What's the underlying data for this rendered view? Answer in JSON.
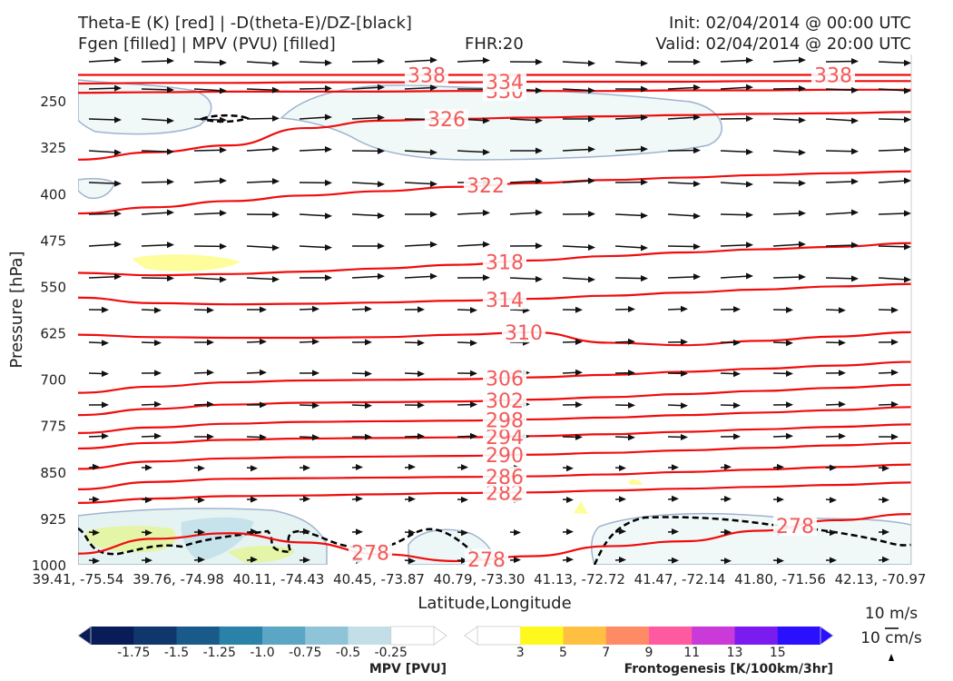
{
  "header": {
    "title_line1": "Theta-E (K) [red] | -D(theta-E)/DZ-[black]",
    "title_line2": "Fgen [filled] | MPV (PVU) [filled]",
    "fhr": "FHR:20",
    "init": "Init: 02/04/2014 @ 00:00 UTC",
    "valid": "Valid: 02/04/2014 @ 20:00 UTC"
  },
  "chart_data": {
    "type": "cross-section",
    "xlabel": "Latitude,Longitude",
    "ylabel": "Pressure [hPa]",
    "ylim": [
      1000,
      175
    ],
    "y_scale": "linear",
    "y_ticks": [
      250,
      325,
      400,
      475,
      550,
      625,
      700,
      775,
      850,
      925,
      1000
    ],
    "x_ticks": [
      "39.41, -75.54",
      "39.76, -74.98",
      "40.11, -74.43",
      "40.45, -73.87",
      "40.79, -73.30",
      "41.13, -72.72",
      "41.47, -72.14",
      "41.80, -71.56",
      "42.13, -70.97"
    ],
    "thetae_contours": [
      {
        "label": "278",
        "p": [
          982,
          958,
          949,
          964,
          983,
          994,
          986,
          970,
          962,
          945,
          928,
          918
        ]
      },
      {
        "label": "282",
        "p": [
          900,
          893,
          889,
          888,
          886,
          884,
          883,
          880,
          877,
          874,
          871,
          867
        ]
      },
      {
        "label": "286",
        "p": [
          878,
          866,
          861,
          860,
          859,
          858,
          857,
          854,
          850,
          846,
          842,
          838
        ]
      },
      {
        "label": "290",
        "p": [
          845,
          833,
          828,
          826,
          825,
          824,
          822,
          819,
          815,
          811,
          807,
          803
        ]
      },
      {
        "label": "294",
        "p": [
          812,
          803,
          798,
          796,
          795,
          794,
          792,
          789,
          785,
          781,
          777,
          773
        ]
      },
      {
        "label": "298",
        "p": [
          787,
          778,
          772,
          769,
          768,
          767,
          765,
          762,
          758,
          754,
          750,
          745
        ]
      },
      {
        "label": "302",
        "p": [
          758,
          748,
          741,
          738,
          737,
          736,
          733,
          729,
          724,
          719,
          714,
          709
        ]
      },
      {
        "label": "306",
        "p": [
          722,
          712,
          705,
          702,
          701,
          700,
          697,
          693,
          688,
          683,
          678,
          672
        ]
      },
      {
        "label": "310",
        "p": [
          628,
          632,
          633,
          633,
          632,
          628,
          624,
          641,
          645,
          638,
          631,
          624
        ]
      },
      {
        "label": "314",
        "p": [
          568,
          577,
          579,
          578,
          576,
          573,
          570,
          565,
          560,
          555,
          550,
          546
        ]
      },
      {
        "label": "318",
        "p": [
          528,
          532,
          530,
          526,
          521,
          515,
          508,
          501,
          495,
          490,
          486,
          480
        ]
      },
      {
        "label": "322",
        "p": [
          432,
          422,
          412,
          403,
          396,
          389,
          383,
          378,
          374,
          370,
          367,
          364
        ]
      },
      {
        "label": "326",
        "p": [
          345,
          333,
          322,
          294,
          282,
          279,
          277,
          275,
          273,
          271,
          270,
          268
        ]
      },
      {
        "label": "330",
        "p": [
          237,
          236,
          235,
          235,
          235,
          234,
          234,
          234,
          233,
          233,
          232,
          232
        ]
      },
      {
        "label": "334",
        "p": [
          222,
          221,
          221,
          220,
          220,
          220,
          219,
          219,
          219,
          218,
          218,
          218
        ]
      },
      {
        "label": "338",
        "p": [
          208,
          208,
          208,
          208,
          208,
          208,
          208,
          208,
          208,
          208,
          208,
          208
        ]
      }
    ],
    "mpv_colorbar": {
      "label": "MPV [PVU]",
      "ticks": [
        "-1.75",
        "-1.5",
        "-1.25",
        "-1.0",
        "-0.75",
        "-0.5",
        "-0.25"
      ],
      "colors": [
        "#081d58",
        "#10376c",
        "#1a5a8a",
        "#2a82a8",
        "#5aa6c4",
        "#8fc4d8",
        "#c2dfe8",
        "#ffffff"
      ]
    },
    "fgen_colorbar": {
      "label": "Frontogenesis [K/100km/3hr]",
      "ticks": [
        "3",
        "5",
        "7",
        "9",
        "11",
        "13",
        "15"
      ],
      "colors": [
        "#ffffff",
        "#fff81d",
        "#ffbf40",
        "#ff8a66",
        "#ff5aa0",
        "#c93ad8",
        "#7a1cf0",
        "#2a10ff"
      ]
    },
    "wind_reference": {
      "label_1": "10 m/s",
      "label_2": "10 cm/s"
    }
  }
}
